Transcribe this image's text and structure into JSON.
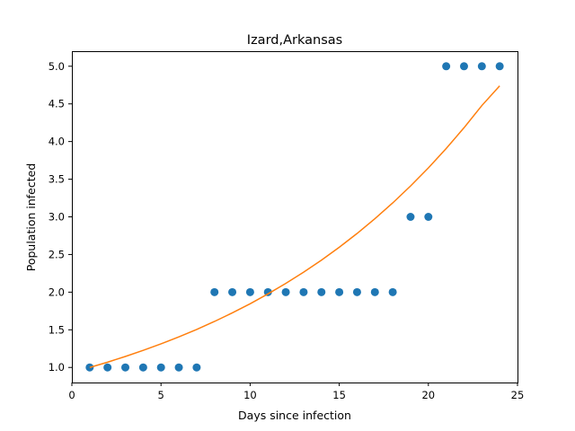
{
  "chart_data": {
    "type": "scatter",
    "title": "Izard,Arkansas",
    "xlabel": "Days since infection",
    "ylabel": "Population infected",
    "xlim": [
      0,
      25
    ],
    "ylim": [
      0.8,
      5.2
    ],
    "xticks": [
      0,
      5,
      10,
      15,
      20,
      25
    ],
    "xtick_labels": [
      "0",
      "5",
      "10",
      "15",
      "20",
      "25"
    ],
    "yticks": [
      1.0,
      1.5,
      2.0,
      2.5,
      3.0,
      3.5,
      4.0,
      4.5,
      5.0
    ],
    "ytick_labels": [
      "1.0",
      "1.5",
      "2.0",
      "2.5",
      "3.0",
      "3.5",
      "4.0",
      "4.5",
      "5.0"
    ],
    "grid": false,
    "series": [
      {
        "kind": "scatter",
        "color": "#1f77b4",
        "x": [
          1,
          2,
          3,
          4,
          5,
          6,
          7,
          8,
          9,
          10,
          11,
          12,
          13,
          14,
          15,
          16,
          17,
          18,
          19,
          20,
          21,
          22,
          23,
          24
        ],
        "y": [
          1,
          1,
          1,
          1,
          1,
          1,
          1,
          2,
          2,
          2,
          2,
          2,
          2,
          2,
          2,
          2,
          2,
          2,
          3,
          3,
          5,
          5,
          5,
          5
        ]
      },
      {
        "kind": "line",
        "color": "#ff7f0e",
        "x": [
          1,
          2,
          3,
          4,
          5,
          6,
          7,
          8,
          9,
          10,
          11,
          12,
          13,
          14,
          15,
          16,
          17,
          18,
          19,
          20,
          21,
          22,
          23,
          24
        ],
        "y": [
          1.0,
          1.07,
          1.146,
          1.227,
          1.313,
          1.406,
          1.505,
          1.611,
          1.725,
          1.846,
          1.977,
          2.116,
          2.265,
          2.425,
          2.596,
          2.779,
          2.975,
          3.185,
          3.41,
          3.65,
          3.908,
          4.183,
          4.478,
          4.74
        ]
      }
    ]
  }
}
